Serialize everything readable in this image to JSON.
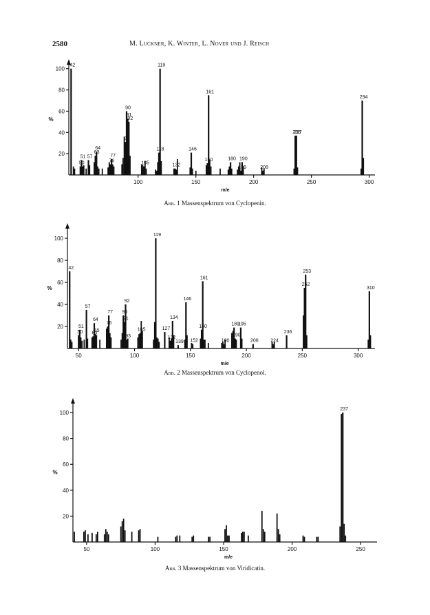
{
  "header": {
    "page_number": "2580",
    "authors": "M. Luckner, K. Winter, L. Nover und J. Reisch"
  },
  "chart_data": [
    {
      "type": "bar",
      "title": "Massenspektrum von Cyclopenin",
      "caption_prefix": "Abb. 1",
      "caption_text": "Massenspektrum von Cyclopenin.",
      "xlabel": "m/e",
      "ylabel": "%",
      "xlim": [
        40,
        305
      ],
      "ylim": [
        0,
        105
      ],
      "xticks": [
        "100",
        "150",
        "200",
        "250",
        "300"
      ],
      "yticks": [
        "20",
        "40",
        "60",
        "80",
        "100"
      ],
      "x": [
        42,
        50,
        51,
        57,
        63,
        64,
        76,
        77,
        89,
        90,
        91,
        92,
        105,
        118,
        119,
        132,
        146,
        160,
        161,
        180,
        189,
        190,
        208,
        236,
        237,
        294
      ],
      "values": [
        100,
        8,
        14,
        14,
        18,
        22,
        10,
        15,
        31,
        60,
        53,
        50,
        8,
        21,
        100,
        6,
        21,
        11,
        75,
        12,
        4,
        12,
        4,
        37,
        37,
        70
      ],
      "peak_labels": [
        "42",
        "50",
        "51",
        "57",
        "63",
        "64",
        "76",
        "77",
        "89",
        "90",
        "91",
        "92",
        "105",
        "118",
        "119",
        "132",
        "146",
        "160",
        "161",
        "180",
        "189",
        "190",
        "208",
        "236",
        "237",
        "294"
      ],
      "minor_x": [
        44,
        45,
        52,
        53,
        55,
        58,
        62,
        65,
        66,
        69,
        74,
        75,
        78,
        79,
        86,
        87,
        88,
        93,
        103,
        104,
        106,
        107,
        115,
        116,
        117,
        120,
        131,
        133,
        134,
        145,
        147,
        150,
        159,
        162,
        163,
        171,
        178,
        179,
        181,
        186,
        187,
        188,
        191,
        207,
        209,
        235,
        238,
        293,
        295
      ],
      "minor_values": [
        8,
        6,
        8,
        9,
        6,
        9,
        12,
        8,
        6,
        6,
        7,
        12,
        10,
        8,
        10,
        16,
        36,
        18,
        10,
        9,
        13,
        6,
        5,
        4,
        12,
        13,
        6,
        5,
        15,
        7,
        6,
        4,
        9,
        14,
        8,
        6,
        5,
        8,
        6,
        5,
        8,
        12,
        8,
        7,
        6,
        6,
        7,
        6,
        16
      ]
    },
    {
      "type": "bar",
      "title": "Massenspektrum von Cyclopenol",
      "caption_prefix": "Abb. 2",
      "caption_text": "Massenspektrum von Cyclopenol.",
      "xlabel": "m/e",
      "ylabel": "%",
      "xlim": [
        40,
        315
      ],
      "ylim": [
        0,
        110
      ],
      "xticks": [
        "50",
        "100",
        "150",
        "200",
        "250",
        "300"
      ],
      "yticks": [
        "20",
        "40",
        "60",
        "80",
        "100"
      ],
      "x": [
        42,
        50,
        51,
        57,
        63,
        64,
        65,
        76,
        77,
        90,
        91,
        92,
        93,
        105,
        119,
        127,
        132,
        134,
        139,
        146,
        152,
        160,
        161,
        180,
        189,
        190,
        195,
        206,
        224,
        236,
        252,
        253,
        310
      ],
      "values": [
        70,
        12,
        17,
        35,
        11,
        23,
        13,
        20,
        30,
        30,
        24,
        40,
        8,
        14,
        100,
        15,
        7,
        25,
        3,
        42,
        4,
        17,
        61,
        4,
        19,
        9,
        19,
        4,
        4,
        12,
        55,
        67,
        52
      ],
      "peak_labels": [
        "42",
        "50",
        "51",
        "57",
        "63",
        "64",
        "65",
        "76",
        "77",
        "90",
        "91",
        "92",
        "93",
        "105",
        "119",
        "127",
        "132",
        "134",
        "139",
        "146",
        "152",
        "160",
        "161",
        "180",
        "189",
        "190",
        "195",
        "206",
        "224",
        "236",
        "252",
        "253",
        "310"
      ],
      "minor_x": [
        43,
        44,
        52,
        53,
        55,
        58,
        62,
        66,
        69,
        75,
        78,
        79,
        88,
        89,
        94,
        103,
        104,
        106,
        107,
        117,
        118,
        120,
        121,
        122,
        131,
        133,
        135,
        145,
        147,
        151,
        159,
        162,
        163,
        166,
        178,
        179,
        181,
        187,
        188,
        191,
        196,
        223,
        225,
        251,
        254,
        309,
        311
      ],
      "minor_values": [
        8,
        6,
        10,
        7,
        8,
        9,
        10,
        12,
        8,
        18,
        14,
        10,
        8,
        14,
        9,
        10,
        13,
        25,
        16,
        8,
        24,
        10,
        9,
        6,
        10,
        9,
        12,
        8,
        12,
        5,
        9,
        8,
        8,
        5,
        5,
        6,
        8,
        14,
        16,
        8,
        9,
        6,
        6,
        30,
        12,
        8,
        12
      ]
    },
    {
      "type": "bar",
      "title": "Massenspektrum von Viridicatin",
      "caption_prefix": "Abb. 3",
      "caption_text": "Massenspektrum von Viridicatin.",
      "xlabel": "m/e",
      "ylabel": "%",
      "xlim": [
        40,
        262
      ],
      "ylim": [
        0,
        108
      ],
      "xticks": [
        "50",
        "100",
        "150",
        "200",
        "250"
      ],
      "yticks": [
        "20",
        "40",
        "60",
        "80",
        "100"
      ],
      "x": [
        237
      ],
      "values": [
        100
      ],
      "peak_labels": [
        "237"
      ],
      "minor_x": [
        41,
        48,
        49,
        51,
        54,
        57,
        58,
        63,
        64,
        65,
        66,
        75,
        76,
        77,
        78,
        83,
        88,
        89,
        102,
        115,
        116,
        118,
        127,
        128,
        139,
        140,
        151,
        152,
        153,
        154,
        163,
        164,
        165,
        168,
        178,
        179,
        180,
        189,
        190,
        191,
        208,
        209,
        218,
        219,
        235,
        236,
        238,
        239
      ],
      "minor_values": [
        8,
        8,
        9,
        6,
        7,
        6,
        8,
        6,
        10,
        8,
        6,
        12,
        16,
        18,
        9,
        8,
        9,
        10,
        4,
        4,
        5,
        5,
        4,
        5,
        4,
        4,
        10,
        13,
        5,
        5,
        7,
        8,
        8,
        5,
        24,
        10,
        8,
        22,
        10,
        6,
        5,
        4,
        4,
        4,
        12,
        99,
        14,
        5
      ]
    }
  ]
}
